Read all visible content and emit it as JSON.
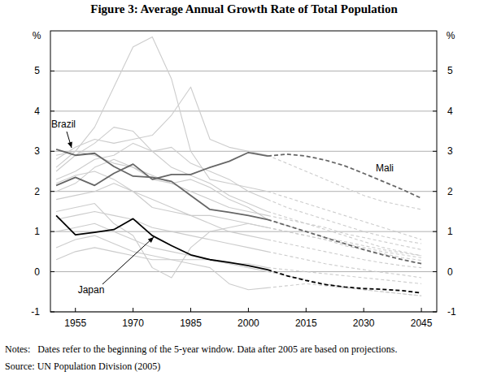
{
  "chart_data": {
    "type": "line",
    "title": "Figure 3: Average Annual Growth Rate of Total Population",
    "y_label": "%",
    "notes": "Notes:   Dates refer to the beginning of the 5-year window. Data after 2005 are based on projections.",
    "source": "Source: UN Population Division (2005)",
    "annotations": [
      "Brazil",
      "Japan",
      "Mali"
    ],
    "x": [
      1950,
      1955,
      1960,
      1965,
      1970,
      1975,
      1980,
      1985,
      1990,
      1995,
      2000,
      2005,
      2010,
      2015,
      2020,
      2025,
      2030,
      2035,
      2040,
      2045
    ],
    "xlim": [
      1948.5,
      2049
    ],
    "xticks": [
      1955,
      1970,
      1985,
      2000,
      2015,
      2030,
      2045
    ],
    "ylim": [
      -1,
      6
    ],
    "yticks": [
      -1,
      0,
      1,
      2,
      3,
      4,
      5
    ],
    "grid": true,
    "series": [
      {
        "color": "#cccccc",
        "line_style": "solid",
        "values": [
          2.6,
          3.0,
          3.6,
          4.6,
          5.6,
          5.85,
          4.8,
          3.0,
          2.3,
          2.2,
          2.1,
          2.0,
          null,
          null,
          null,
          null,
          null,
          null,
          null,
          null
        ]
      },
      {
        "color": "#cccccc",
        "line_style": "dashed",
        "values": [
          null,
          null,
          null,
          null,
          null,
          null,
          null,
          null,
          null,
          null,
          null,
          2.0,
          1.85,
          1.7,
          1.55,
          1.4,
          1.25,
          1.1,
          0.95,
          0.8
        ]
      },
      {
        "color": "#cccccc",
        "line_style": "solid",
        "values": [
          2.8,
          3.1,
          3.3,
          3.2,
          3.3,
          3.4,
          3.9,
          4.6,
          3.3,
          3.1,
          3.0,
          2.9,
          null,
          null,
          null,
          null,
          null,
          null,
          null,
          null
        ]
      },
      {
        "color": "#cccccc",
        "line_style": "dashed",
        "values": [
          null,
          null,
          null,
          null,
          null,
          null,
          null,
          null,
          null,
          null,
          null,
          2.9,
          2.7,
          2.5,
          2.3,
          2.1,
          1.9,
          1.75,
          1.65,
          1.55
        ]
      },
      {
        "color": "#cccccc",
        "line_style": "solid",
        "values": [
          2.5,
          2.9,
          3.2,
          3.6,
          3.5,
          3.0,
          2.6,
          2.4,
          2.2,
          1.9,
          1.7,
          1.5,
          null,
          null,
          null,
          null,
          null,
          null,
          null,
          null
        ]
      },
      {
        "color": "#cccccc",
        "line_style": "dashed",
        "values": [
          null,
          null,
          null,
          null,
          null,
          null,
          null,
          null,
          null,
          null,
          null,
          1.5,
          1.35,
          1.2,
          1.05,
          0.9,
          0.75,
          0.6,
          0.5,
          0.4
        ]
      },
      {
        "color": "#cccccc",
        "line_style": "solid",
        "values": [
          2.2,
          2.4,
          2.5,
          2.3,
          2.0,
          1.6,
          1.5,
          1.4,
          1.4,
          1.3,
          1.2,
          1.1,
          null,
          null,
          null,
          null,
          null,
          null,
          null,
          null
        ]
      },
      {
        "color": "#cccccc",
        "line_style": "dashed",
        "values": [
          null,
          null,
          null,
          null,
          null,
          null,
          null,
          null,
          null,
          null,
          null,
          1.1,
          1.0,
          0.9,
          0.8,
          0.65,
          0.55,
          0.45,
          0.35,
          0.28
        ]
      },
      {
        "color": "#cccccc",
        "line_style": "solid",
        "values": [
          1.5,
          1.6,
          1.7,
          1.2,
          0.9,
          0.1,
          -0.15,
          0.6,
          1.0,
          1.1,
          1.2,
          1.1,
          null,
          null,
          null,
          null,
          null,
          null,
          null,
          null
        ]
      },
      {
        "color": "#cccccc",
        "line_style": "dashed",
        "values": [
          null,
          null,
          null,
          null,
          null,
          null,
          null,
          null,
          null,
          null,
          null,
          1.1,
          1.0,
          0.9,
          0.8,
          0.7,
          0.6,
          0.5,
          0.42,
          0.35
        ]
      },
      {
        "color": "#cccccc",
        "line_style": "solid",
        "values": [
          0.6,
          0.8,
          0.9,
          0.7,
          0.5,
          0.4,
          0.3,
          0.3,
          0.3,
          0.2,
          0.1,
          0.0,
          null,
          null,
          null,
          null,
          null,
          null,
          null,
          null
        ]
      },
      {
        "color": "#cccccc",
        "line_style": "dashed",
        "values": [
          null,
          null,
          null,
          null,
          null,
          null,
          null,
          null,
          null,
          null,
          null,
          0.0,
          -0.1,
          -0.2,
          -0.3,
          -0.38,
          -0.45,
          -0.5,
          -0.55,
          -0.6
        ]
      },
      {
        "color": "#cccccc",
        "line_style": "solid",
        "values": [
          1.0,
          1.1,
          1.2,
          1.0,
          0.8,
          0.6,
          0.5,
          0.4,
          0.3,
          0.2,
          0.2,
          0.1,
          null,
          null,
          null,
          null,
          null,
          null,
          null,
          null
        ]
      },
      {
        "color": "#cccccc",
        "line_style": "dashed",
        "values": [
          null,
          null,
          null,
          null,
          null,
          null,
          null,
          null,
          null,
          null,
          null,
          0.1,
          0.05,
          0.0,
          -0.05,
          -0.1,
          -0.15,
          -0.2,
          -0.25,
          -0.3
        ]
      },
      {
        "color": "#cccccc",
        "line_style": "solid",
        "values": [
          1.8,
          1.9,
          2.0,
          2.2,
          2.0,
          1.8,
          1.6,
          1.4,
          1.2,
          1.0,
          0.9,
          0.8,
          null,
          null,
          null,
          null,
          null,
          null,
          null,
          null
        ]
      },
      {
        "color": "#cccccc",
        "line_style": "dashed",
        "values": [
          null,
          null,
          null,
          null,
          null,
          null,
          null,
          null,
          null,
          null,
          null,
          0.8,
          0.7,
          0.6,
          0.5,
          0.4,
          0.3,
          0.22,
          0.15,
          0.1
        ]
      },
      {
        "color": "#cccccc",
        "line_style": "solid",
        "values": [
          0.3,
          0.5,
          0.6,
          0.5,
          0.4,
          0.3,
          0.3,
          0.2,
          0.1,
          -0.3,
          -0.45,
          -0.4,
          null,
          null,
          null,
          null,
          null,
          null,
          null,
          null
        ]
      },
      {
        "color": "#cccccc",
        "line_style": "dashed",
        "values": [
          null,
          null,
          null,
          null,
          null,
          null,
          null,
          null,
          null,
          null,
          null,
          -0.4,
          -0.35,
          -0.3,
          -0.35,
          -0.4,
          -0.45,
          -0.5,
          -0.55,
          -0.6
        ]
      },
      {
        "color": "#cccccc",
        "line_style": "solid",
        "values": [
          2.0,
          2.2,
          2.6,
          2.8,
          2.6,
          2.3,
          2.2,
          2.0,
          1.8,
          1.6,
          1.5,
          1.4,
          null,
          null,
          null,
          null,
          null,
          null,
          null,
          null
        ]
      },
      {
        "color": "#cccccc",
        "line_style": "dashed",
        "values": [
          null,
          null,
          null,
          null,
          null,
          null,
          null,
          null,
          null,
          null,
          null,
          1.4,
          1.3,
          1.2,
          1.1,
          0.95,
          0.85,
          0.75,
          0.65,
          0.55
        ]
      },
      {
        "color": "#cccccc",
        "line_style": "solid",
        "values": [
          2.9,
          3.0,
          2.9,
          2.7,
          2.6,
          2.4,
          2.2,
          2.3,
          2.1,
          1.8,
          1.6,
          1.3,
          null,
          null,
          null,
          null,
          null,
          null,
          null,
          null
        ]
      },
      {
        "color": "#cccccc",
        "line_style": "dashed",
        "values": [
          null,
          null,
          null,
          null,
          null,
          null,
          null,
          null,
          null,
          null,
          null,
          1.3,
          1.15,
          1.0,
          0.85,
          0.75,
          0.65,
          0.55,
          0.47,
          0.4
        ]
      },
      {
        "color": "#cccccc",
        "line_style": "solid",
        "values": [
          1.3,
          1.4,
          1.5,
          1.4,
          1.3,
          1.1,
          1.0,
          0.9,
          0.8,
          0.7,
          0.6,
          0.5,
          null,
          null,
          null,
          null,
          null,
          null,
          null,
          null
        ]
      },
      {
        "color": "#cccccc",
        "line_style": "dashed",
        "values": [
          null,
          null,
          null,
          null,
          null,
          null,
          null,
          null,
          null,
          null,
          null,
          0.5,
          0.4,
          0.3,
          0.2,
          0.12,
          0.05,
          -0.02,
          -0.08,
          -0.15
        ]
      },
      {
        "color": "#cccccc",
        "line_style": "solid",
        "values": [
          2.3,
          2.5,
          2.8,
          2.9,
          3.2,
          3.0,
          3.1,
          2.7,
          2.5,
          2.3,
          2.0,
          1.8,
          null,
          null,
          null,
          null,
          null,
          null,
          null,
          null
        ]
      },
      {
        "color": "#cccccc",
        "line_style": "dashed",
        "values": [
          null,
          null,
          null,
          null,
          null,
          null,
          null,
          null,
          null,
          null,
          null,
          1.8,
          1.6,
          1.45,
          1.3,
          1.15,
          1.0,
          0.88,
          0.78,
          0.7
        ]
      },
      {
        "color": "#666666",
        "line_style": "solid",
        "values": [
          3.05,
          2.9,
          2.95,
          2.62,
          2.38,
          2.35,
          2.25,
          1.9,
          1.55,
          1.48,
          1.4,
          1.3,
          null,
          null,
          null,
          null,
          null,
          null,
          null,
          null
        ]
      },
      {
        "color": "#666666",
        "line_style": "dashed",
        "values": [
          null,
          null,
          null,
          null,
          null,
          null,
          null,
          null,
          null,
          null,
          null,
          1.3,
          1.15,
          1.0,
          0.85,
          0.7,
          0.55,
          0.42,
          0.3,
          0.2
        ]
      },
      {
        "color": "#666666",
        "line_style": "solid",
        "values": [
          2.15,
          2.35,
          2.15,
          2.45,
          2.68,
          2.3,
          2.42,
          2.42,
          2.6,
          2.75,
          2.97,
          2.88,
          null,
          null,
          null,
          null,
          null,
          null,
          null,
          null
        ]
      },
      {
        "color": "#666666",
        "line_style": "dashed",
        "values": [
          null,
          null,
          null,
          null,
          null,
          null,
          null,
          null,
          null,
          null,
          null,
          2.88,
          2.93,
          2.88,
          2.78,
          2.64,
          2.45,
          2.25,
          2.05,
          1.83
        ]
      },
      {
        "color": "#000000",
        "line_style": "solid",
        "values": [
          1.4,
          0.92,
          0.98,
          1.05,
          1.32,
          0.9,
          0.65,
          0.42,
          0.3,
          0.23,
          0.15,
          0.05,
          null,
          null,
          null,
          null,
          null,
          null,
          null,
          null
        ]
      },
      {
        "color": "#000000",
        "line_style": "dashed",
        "values": [
          null,
          null,
          null,
          null,
          null,
          null,
          null,
          null,
          null,
          null,
          null,
          0.05,
          -0.1,
          -0.22,
          -0.32,
          -0.38,
          -0.42,
          -0.44,
          -0.47,
          -0.53
        ]
      }
    ]
  }
}
